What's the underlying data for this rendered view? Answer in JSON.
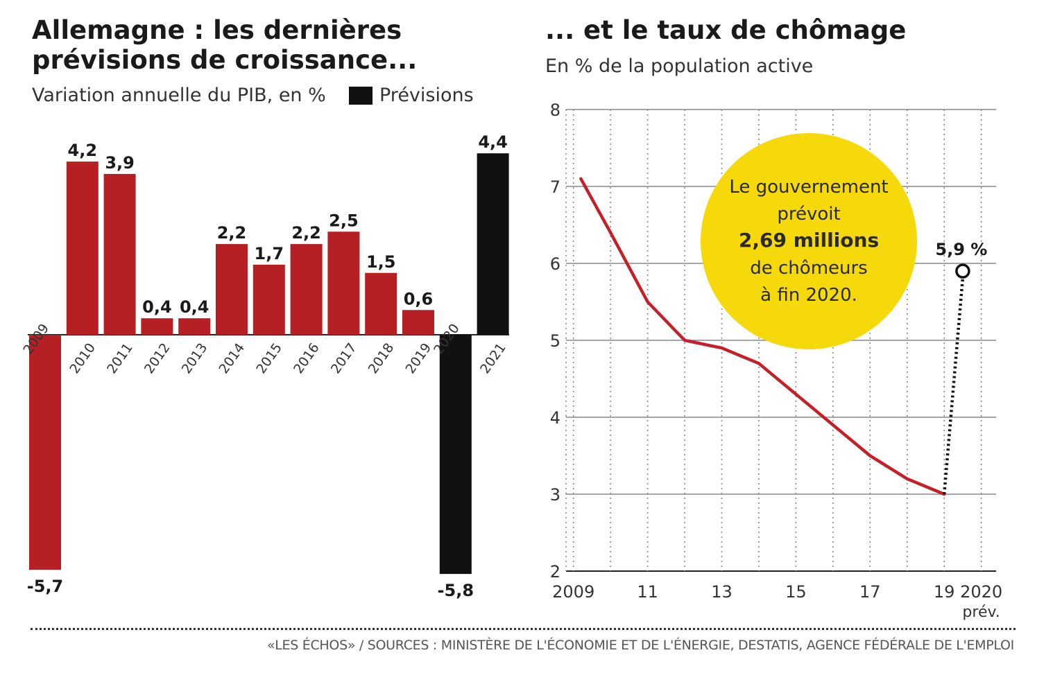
{
  "left": {
    "title": "Allemagne : les dernières prévisions de croissance...",
    "subtitle": "Variation annuelle du PIB, en %",
    "legend_label": "Prévisions"
  },
  "right": {
    "title": "... et le taux de chômage",
    "subtitle": "En % de la population active",
    "bubble": {
      "line1": "Le gouvernement",
      "line2": "prévoit",
      "line3": "2,69 millions",
      "line4": "de chômeurs",
      "line5": "à fin 2020."
    }
  },
  "source": "«LES ÉCHOS» / SOURCES : MINISTÈRE DE L'ÉCONOMIE ET DE L'ÉNERGIE, DESTATIS, AGENCE FÉDÉRALE DE L'EMPLOI",
  "colors": {
    "actual": "#b62025",
    "forecast": "#111111",
    "line": "#c5202a",
    "bubble": "#f5d90a",
    "grid": "#888888"
  },
  "chart_data": [
    {
      "type": "bar",
      "title": "Allemagne : les dernières prévisions de croissance...",
      "ylabel": "Variation annuelle du PIB, en %",
      "categories": [
        "2009",
        "2010",
        "2011",
        "2012",
        "2013",
        "2014",
        "2015",
        "2016",
        "2017",
        "2018",
        "2019",
        "2020",
        "2021"
      ],
      "values": [
        -5.7,
        4.2,
        3.9,
        0.4,
        0.4,
        2.2,
        1.7,
        2.2,
        2.5,
        1.5,
        0.6,
        -5.8,
        4.4
      ],
      "value_labels": [
        "-5,7",
        "4,2",
        "3,9",
        "0,4",
        "0,4",
        "2,2",
        "1,7",
        "2,2",
        "2,5",
        "1,5",
        "0,6",
        "-5,8",
        "4,4"
      ],
      "forecast": [
        false,
        false,
        false,
        false,
        false,
        false,
        false,
        false,
        false,
        false,
        false,
        true,
        true
      ],
      "ylim": [
        -6,
        5
      ],
      "grid": false
    },
    {
      "type": "line",
      "title": "... et le taux de chômage",
      "ylabel": "En % de la population active",
      "x": [
        2009.2,
        2010,
        2011,
        2012,
        2013,
        2014,
        2015,
        2016,
        2017,
        2018,
        2019
      ],
      "values": [
        7.1,
        6.4,
        5.5,
        5.0,
        4.9,
        4.7,
        4.3,
        3.9,
        3.5,
        3.2,
        3.0
      ],
      "forecast_segment": {
        "x": [
          2019,
          2019.5
        ],
        "values": [
          3.0,
          5.9
        ],
        "label": "5,9 %"
      },
      "xlim": [
        2008.8,
        2020.4
      ],
      "ylim": [
        2,
        8
      ],
      "yticks": [
        2,
        3,
        4,
        5,
        6,
        7,
        8
      ],
      "xtick_positions": [
        2009,
        2011,
        2013,
        2015,
        2017,
        2019,
        2020
      ],
      "xtick_labels": [
        "2009",
        "11",
        "13",
        "15",
        "17",
        "19",
        "2020"
      ],
      "xtick_sublabel": "prév.",
      "grid": true
    }
  ]
}
